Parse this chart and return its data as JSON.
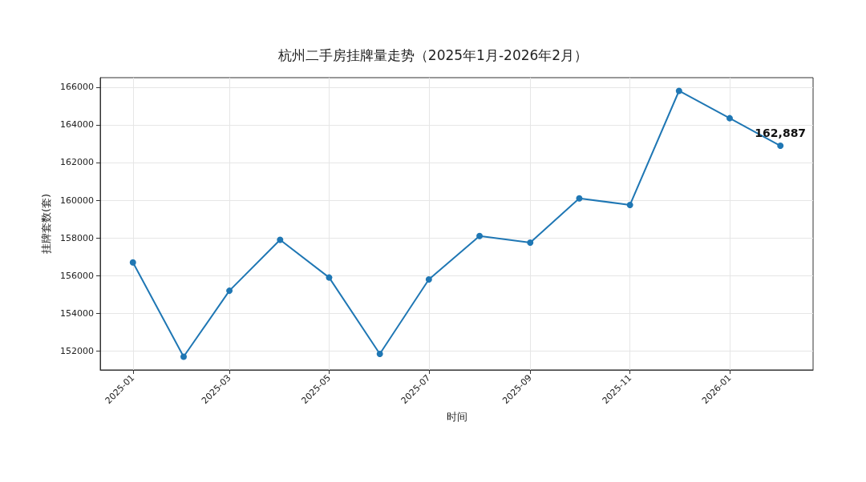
{
  "chart_data": {
    "type": "line",
    "title": "杭州二手房挂牌量走势（2025年1月-2026年2月）",
    "xlabel": "时间",
    "ylabel": "挂牌套数(套)",
    "x": [
      "2025-01",
      "2025-02",
      "2025-03",
      "2025-04",
      "2025-05",
      "2025-06",
      "2025-07",
      "2025-08",
      "2025-09",
      "2025-10",
      "2025-11",
      "2025-12",
      "2026-01",
      "2026-02"
    ],
    "series": [
      {
        "color": "#1f77b4",
        "values": [
          156700,
          151700,
          155200,
          157900,
          155900,
          151850,
          155800,
          158100,
          157750,
          160100,
          159750,
          165800,
          164350,
          162887
        ],
        "value_labels": [
          null,
          null,
          null,
          null,
          null,
          null,
          null,
          null,
          null,
          null,
          null,
          null,
          null,
          "162,887"
        ]
      }
    ],
    "xlim": [
      "2024-12-12",
      "2026-02-21"
    ],
    "xticks": [
      "2025-01",
      "2025-03",
      "2025-05",
      "2025-07",
      "2025-09",
      "2025-11",
      "2026-01"
    ],
    "ylim": [
      151000,
      166500
    ],
    "yticks": [
      152000,
      154000,
      156000,
      158000,
      160000,
      162000,
      164000,
      166000
    ],
    "grid": true,
    "marker": "circle",
    "line_style": "solid"
  }
}
